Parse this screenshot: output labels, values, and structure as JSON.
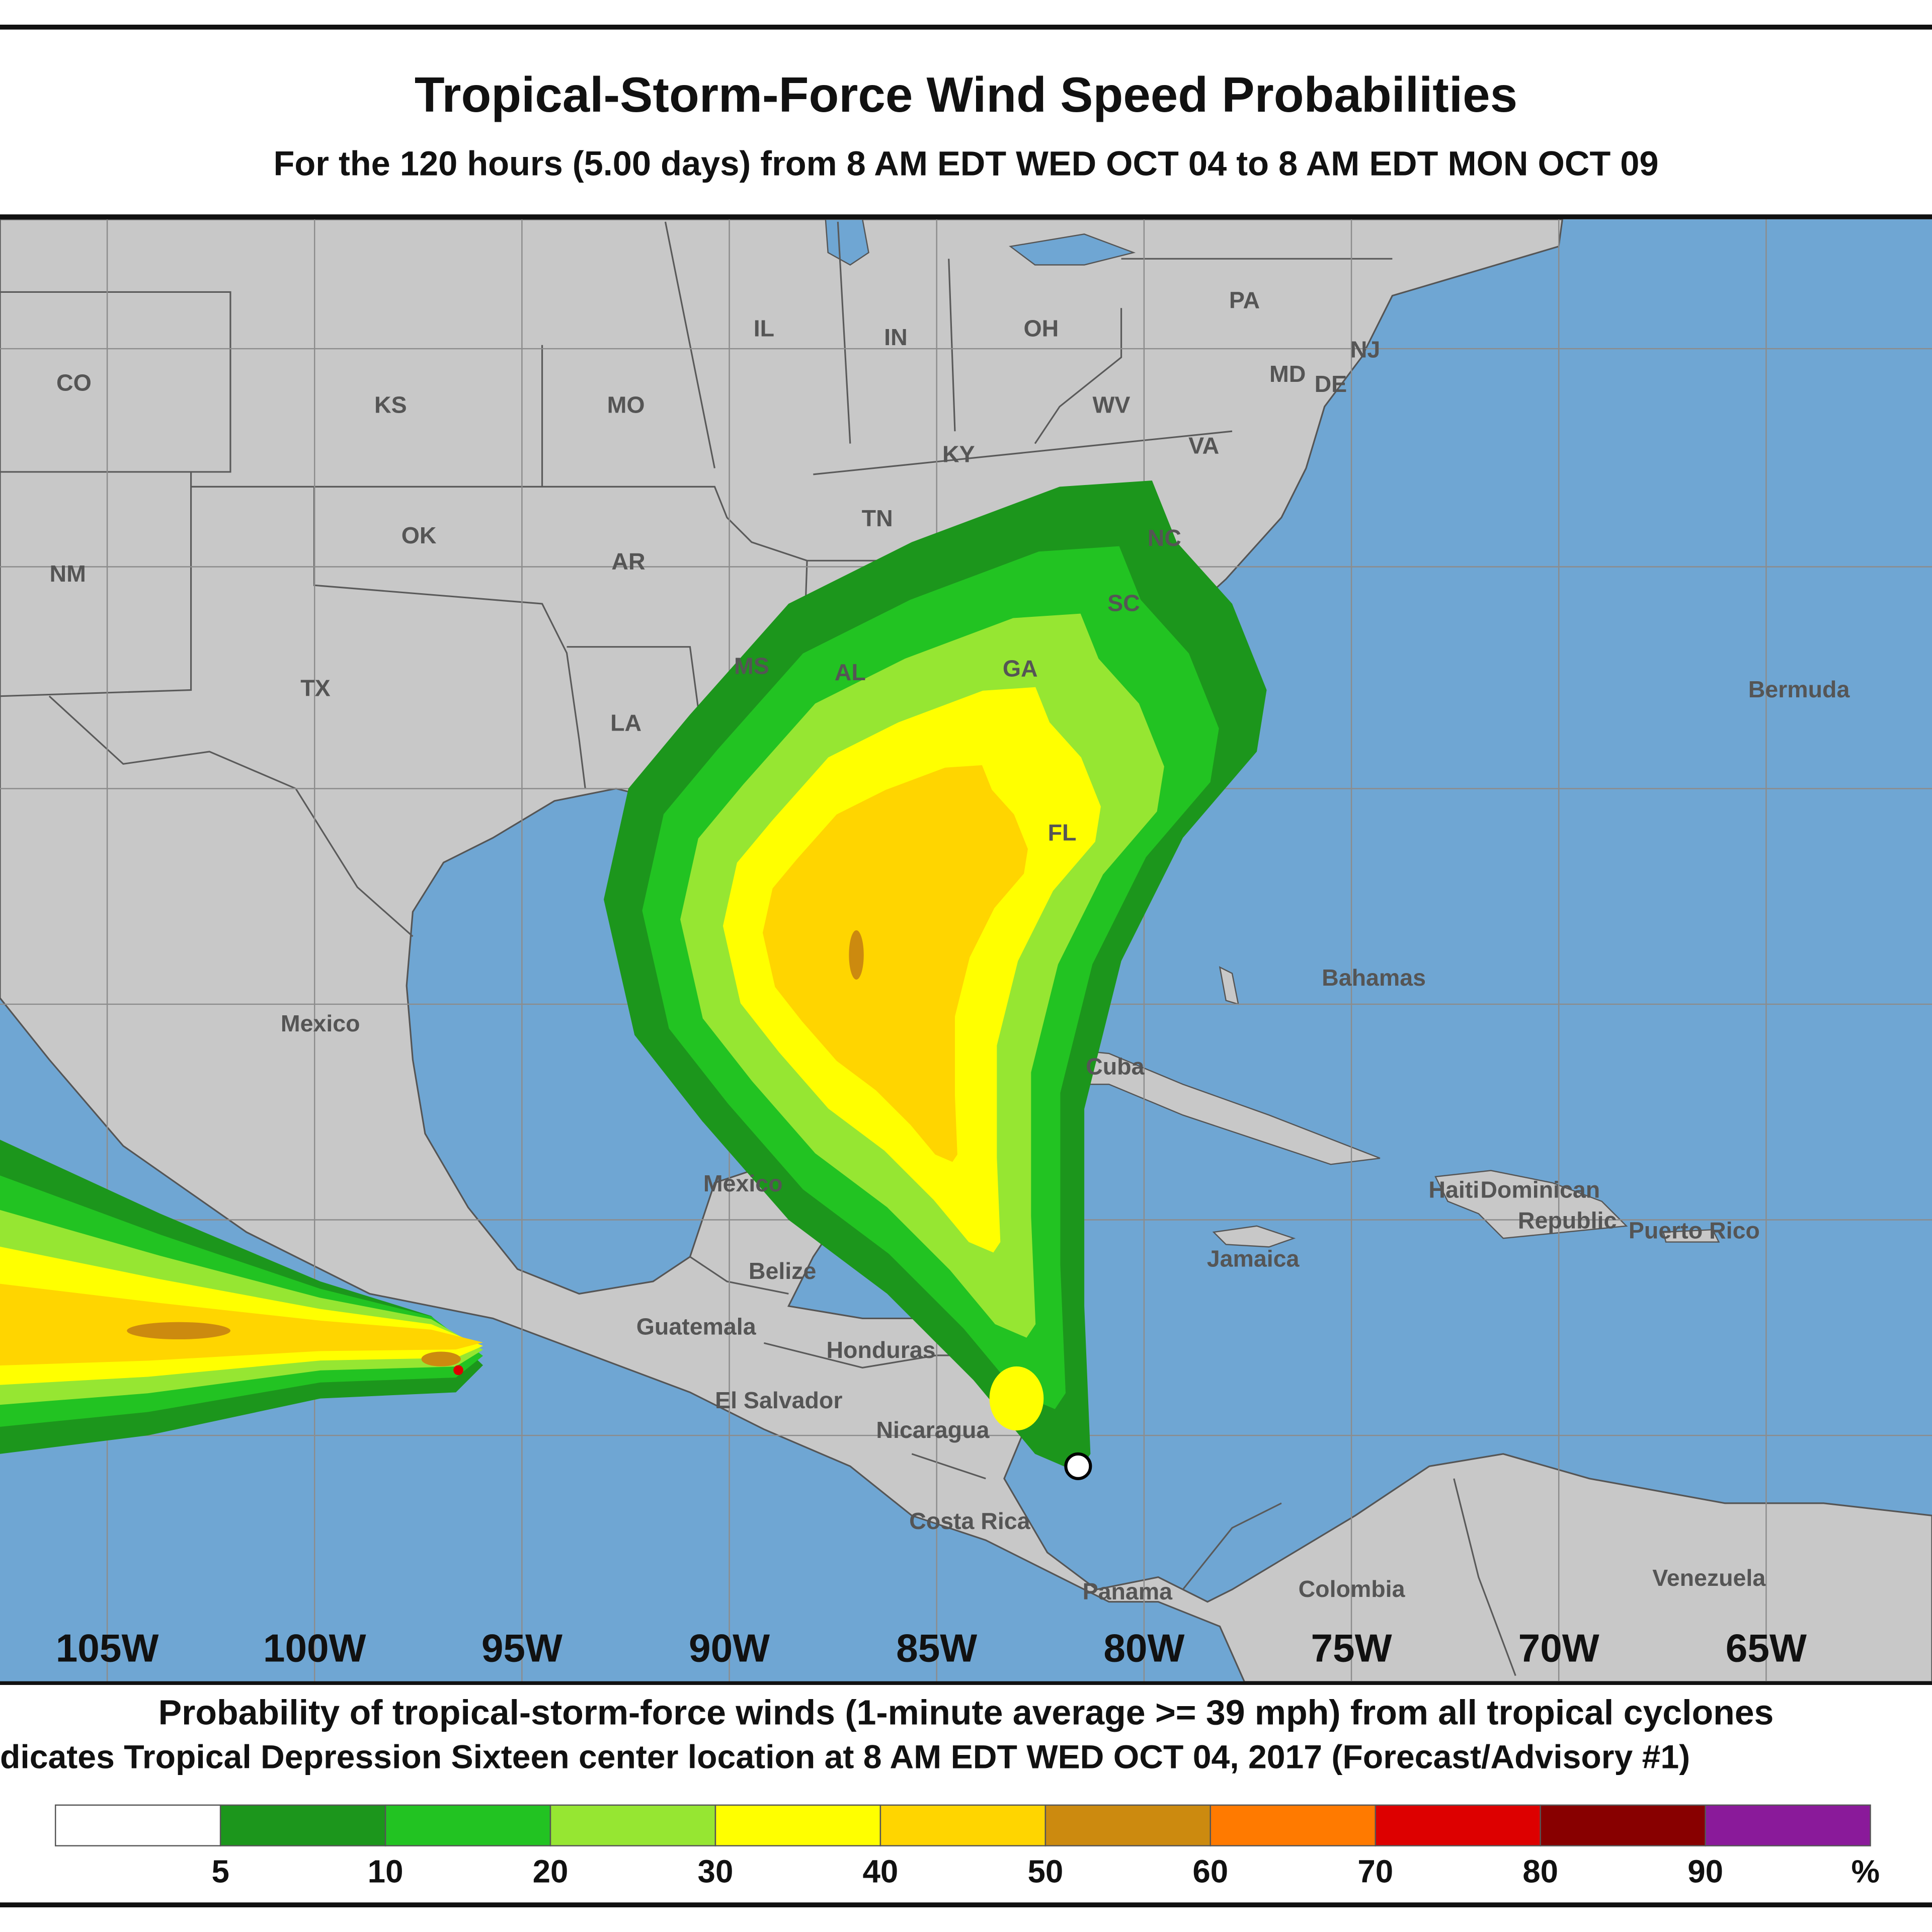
{
  "header": {
    "title": "Tropical-Storm-Force Wind Speed Probabilities",
    "subtitle": "For the 120 hours (5.00 days) from 8 AM EDT WED OCT 04 to 8 AM EDT MON OCT 09"
  },
  "map": {
    "labels": [
      "CO",
      "KS",
      "MO",
      "IL",
      "IN",
      "OH",
      "PA",
      "NJ",
      "MD",
      "DE",
      "WV",
      "VA",
      "KY",
      "TN",
      "NC",
      "OK",
      "AR",
      "NM",
      "SC",
      "TX",
      "MS",
      "AL",
      "GA",
      "LA",
      "FL",
      "Bermuda",
      "Bahamas",
      "Mexico",
      "Cuba",
      "Mexico",
      "Haiti",
      "Dominican",
      "Republic",
      "Puerto Rico",
      "Jamaica",
      "Belize",
      "Guatemala",
      "Honduras",
      "El Salvador",
      "Nicaragua",
      "Costa Rica",
      "Panama",
      "Colombia",
      "Venezuela"
    ],
    "longitudes": [
      "105W",
      "100W",
      "95W",
      "90W",
      "85W",
      "80W",
      "75W",
      "70W",
      "65W"
    ]
  },
  "footer": {
    "line1": "Probability of tropical-storm-force winds (1-minute average >= 39 mph) from all tropical cyclones",
    "line2": "dicates Tropical Depression Sixteen center location at 8 AM EDT WED OCT 04, 2017 (Forecast/Advisory #1)"
  },
  "legend": {
    "ticks": [
      5,
      10,
      20,
      30,
      40,
      50,
      60,
      70,
      80,
      90
    ],
    "unit": "%",
    "colors": [
      "#ffffff",
      "#1c961c",
      "#22c322",
      "#96e632",
      "#ffff00",
      "#ffd500",
      "#cc8a0f",
      "#ff7a00",
      "#dd0000",
      "#880000",
      "#8a1a9a"
    ]
  }
}
